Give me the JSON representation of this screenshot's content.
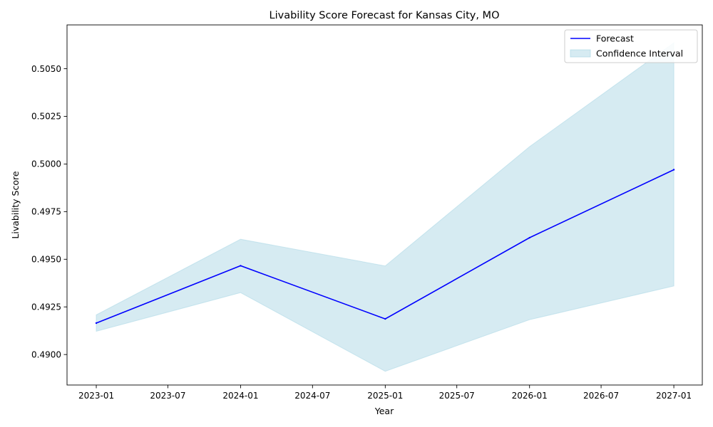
{
  "chart_data": {
    "type": "line",
    "title": "Livability Score Forecast for Kansas City, MO",
    "xlabel": "Year",
    "ylabel": "Livability Score",
    "x_ticks": [
      "2023-01",
      "2023-07",
      "2024-01",
      "2024-07",
      "2025-01",
      "2025-07",
      "2026-01",
      "2026-07",
      "2027-01"
    ],
    "y_ticks": [
      "0.4900",
      "0.4925",
      "0.4950",
      "0.4975",
      "0.5000",
      "0.5025",
      "0.5050"
    ],
    "ylim": [
      0.4884,
      0.5073
    ],
    "xlim": [
      "2022-10-19",
      "2027-03-14"
    ],
    "grid": false,
    "legend_position": "top-right",
    "series": [
      {
        "name": "Forecast",
        "type": "line",
        "color": "#0000ff",
        "x": [
          "2023-01-01",
          "2024-01-01",
          "2025-01-01",
          "2026-01-01",
          "2027-01-01"
        ],
        "values": [
          0.49165,
          0.49466,
          0.49187,
          0.49613,
          0.4997
        ]
      },
      {
        "name": "Confidence Interval",
        "type": "band",
        "color": "#add8e6",
        "x": [
          "2023-01-01",
          "2024-01-01",
          "2025-01-01",
          "2026-01-01",
          "2027-01-01"
        ],
        "lower": [
          0.49122,
          0.49325,
          0.48912,
          0.49183,
          0.4936
        ],
        "upper": [
          0.49208,
          0.49605,
          0.49465,
          0.50091,
          0.50636
        ]
      }
    ]
  }
}
